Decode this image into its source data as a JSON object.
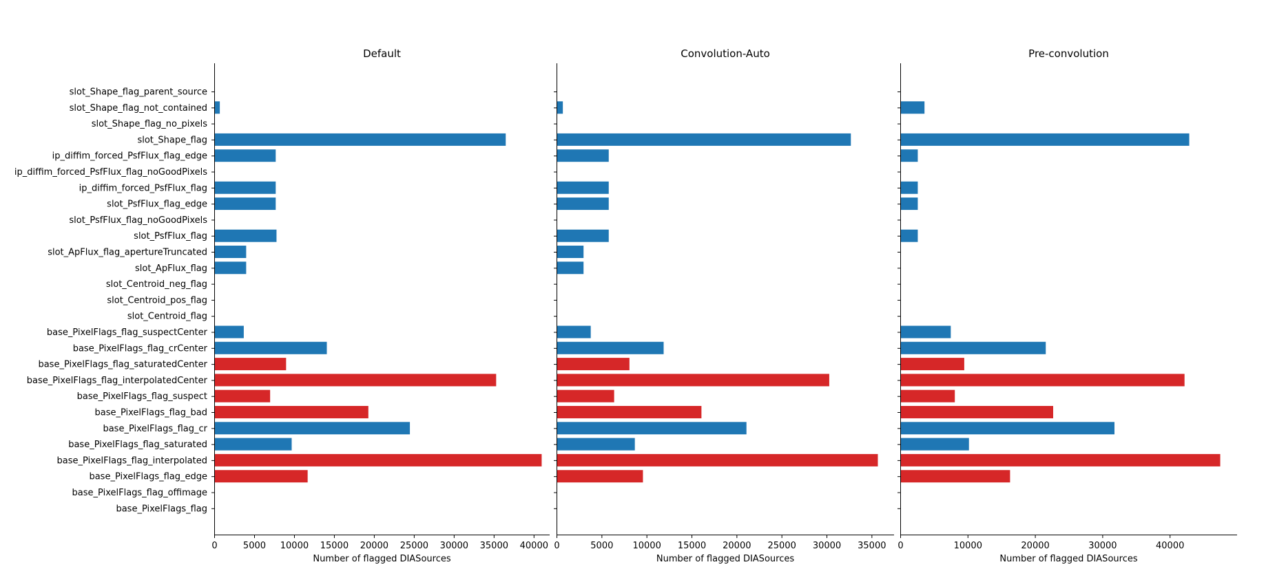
{
  "chart_data": {
    "type": "bar",
    "orientation": "horizontal",
    "categories": [
      "slot_Shape_flag_parent_source",
      "slot_Shape_flag_not_contained",
      "slot_Shape_flag_no_pixels",
      "slot_Shape_flag",
      "ip_diffim_forced_PsfFlux_flag_edge",
      "ip_diffim_forced_PsfFlux_flag_noGoodPixels",
      "ip_diffim_forced_PsfFlux_flag",
      "slot_PsfFlux_flag_edge",
      "slot_PsfFlux_flag_noGoodPixels",
      "slot_PsfFlux_flag",
      "slot_ApFlux_flag_apertureTruncated",
      "slot_ApFlux_flag",
      "slot_Centroid_neg_flag",
      "slot_Centroid_pos_flag",
      "slot_Centroid_flag",
      "base_PixelFlags_flag_suspectCenter",
      "base_PixelFlags_flag_crCenter",
      "base_PixelFlags_flag_saturatedCenter",
      "base_PixelFlags_flag_interpolatedCenter",
      "base_PixelFlags_flag_suspect",
      "base_PixelFlags_flag_bad",
      "base_PixelFlags_flag_cr",
      "base_PixelFlags_flag_saturated",
      "base_PixelFlags_flag_interpolated",
      "base_PixelFlags_flag_edge",
      "base_PixelFlags_flag_offimage",
      "base_PixelFlags_flag"
    ],
    "bar_colors": [
      "blue",
      "blue",
      "blue",
      "blue",
      "blue",
      "blue",
      "blue",
      "blue",
      "blue",
      "blue",
      "blue",
      "blue",
      "blue",
      "blue",
      "blue",
      "blue",
      "blue",
      "red",
      "red",
      "red",
      "red",
      "blue",
      "blue",
      "red",
      "red",
      "blue",
      "blue"
    ],
    "colors": {
      "blue": "#1f77b4",
      "red": "#d62728"
    },
    "xlabel": "Number of flagged DIASources",
    "panels": [
      {
        "title": "Default",
        "xlim": [
          0,
          42000
        ],
        "xticks": [
          0,
          5000,
          10000,
          15000,
          20000,
          25000,
          30000,
          35000,
          40000
        ],
        "values": [
          0,
          700,
          0,
          36500,
          7700,
          0,
          7700,
          7700,
          0,
          7800,
          4000,
          4000,
          0,
          0,
          0,
          3700,
          14100,
          9000,
          35300,
          7000,
          19300,
          24500,
          9700,
          41000,
          11700,
          0,
          0
        ]
      },
      {
        "title": "Convolution-Auto",
        "xlim": [
          0,
          37500
        ],
        "xticks": [
          0,
          5000,
          10000,
          15000,
          20000,
          25000,
          30000,
          35000
        ],
        "values": [
          0,
          700,
          0,
          32700,
          5800,
          0,
          5800,
          5800,
          0,
          5800,
          3000,
          3000,
          0,
          0,
          0,
          3800,
          11900,
          8100,
          30300,
          6400,
          16100,
          21100,
          8700,
          35700,
          9600,
          0,
          0
        ]
      },
      {
        "title": "Pre-convolution",
        "xlim": [
          0,
          50000
        ],
        "xticks": [
          0,
          10000,
          20000,
          30000,
          40000
        ],
        "values": [
          0,
          3600,
          0,
          42900,
          2600,
          0,
          2600,
          2600,
          0,
          2600,
          0,
          0,
          0,
          0,
          0,
          7500,
          21600,
          9500,
          42200,
          8100,
          22700,
          31800,
          10200,
          47500,
          16300,
          0,
          0
        ]
      }
    ]
  }
}
